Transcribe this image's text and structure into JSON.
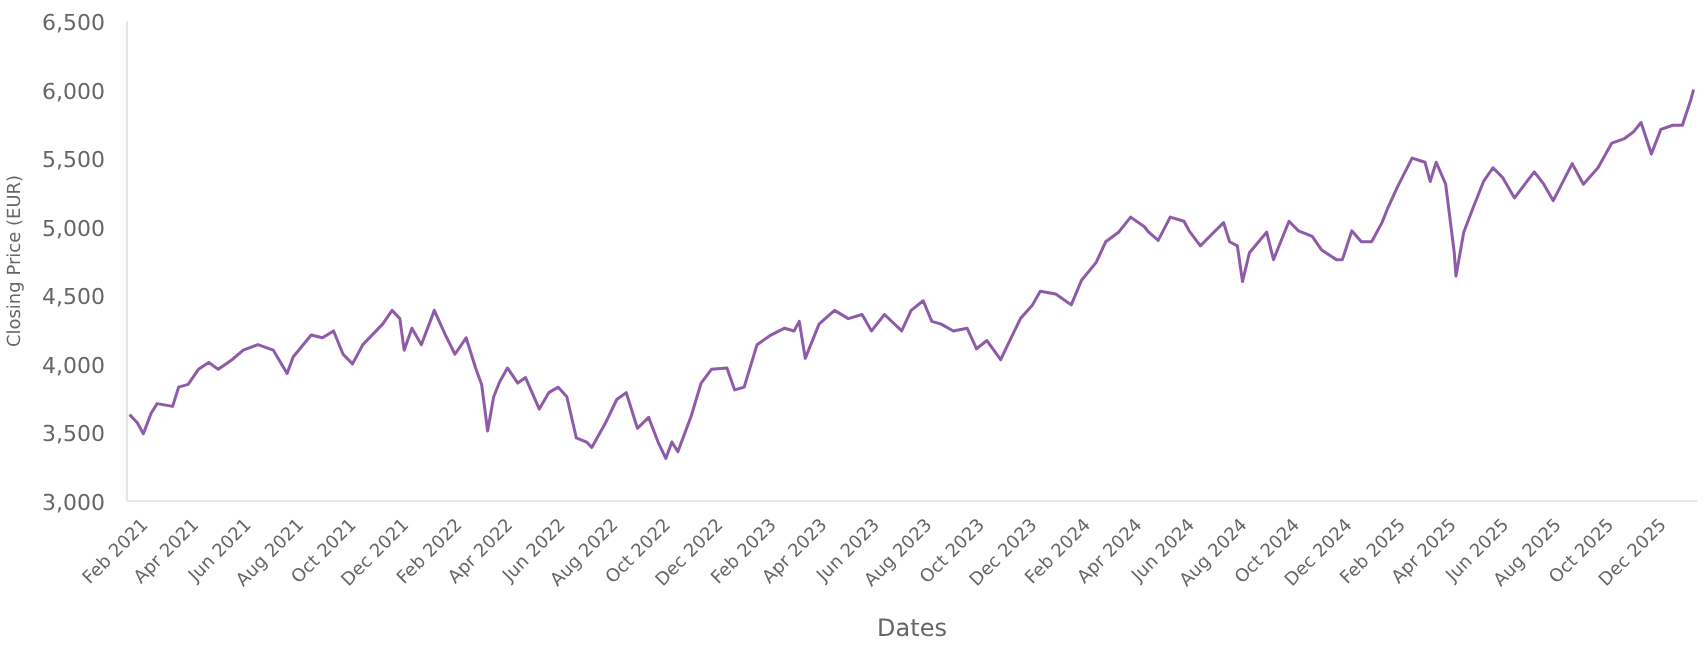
{
  "chart_data": {
    "type": "line",
    "xlabel": "Dates",
    "ylabel": "Closing Price (EUR)",
    "x": [
      "2021-01-13",
      "2021-01-22",
      "2021-01-29",
      "2021-02-07",
      "2021-02-14",
      "2021-03-04",
      "2021-03-11",
      "2021-03-22",
      "2021-04-03",
      "2021-04-15",
      "2021-04-26",
      "2021-05-12",
      "2021-05-25",
      "2021-06-11",
      "2021-06-29",
      "2021-07-15",
      "2021-07-22",
      "2021-08-12",
      "2021-08-25",
      "2021-09-07",
      "2021-09-18",
      "2021-09-29",
      "2021-10-11",
      "2021-11-03",
      "2021-11-14",
      "2021-11-23",
      "2021-11-28",
      "2021-12-07",
      "2021-12-18",
      "2022-01-02",
      "2022-01-15",
      "2022-01-26",
      "2022-02-08",
      "2022-02-19",
      "2022-02-26",
      "2022-03-05",
      "2022-03-12",
      "2022-03-19",
      "2022-03-28",
      "2022-04-09",
      "2022-04-18",
      "2022-05-04",
      "2022-05-15",
      "2022-05-26",
      "2022-06-05",
      "2022-06-16",
      "2022-06-28",
      "2022-07-04",
      "2022-07-20",
      "2022-08-02",
      "2022-08-13",
      "2022-08-26",
      "2022-09-08",
      "2022-09-19",
      "2022-09-28",
      "2022-10-05",
      "2022-10-12",
      "2022-10-27",
      "2022-11-08",
      "2022-11-20",
      "2022-12-08",
      "2022-12-17",
      "2022-12-28",
      "2023-01-12",
      "2023-01-28",
      "2023-02-13",
      "2023-02-24",
      "2023-03-02",
      "2023-03-09",
      "2023-03-25",
      "2023-04-12",
      "2023-04-28",
      "2023-05-14",
      "2023-05-25",
      "2023-06-09",
      "2023-06-29",
      "2023-07-10",
      "2023-07-24",
      "2023-08-03",
      "2023-08-14",
      "2023-08-28",
      "2023-09-13",
      "2023-09-24",
      "2023-10-06",
      "2023-10-22",
      "2023-10-28",
      "2023-11-14",
      "2023-11-28",
      "2023-12-07",
      "2023-12-25",
      "2024-01-12",
      "2024-01-24",
      "2024-02-10",
      "2024-02-21",
      "2024-03-07",
      "2024-03-21",
      "2024-04-06",
      "2024-04-11",
      "2024-04-22",
      "2024-05-06",
      "2024-05-22",
      "2024-05-28",
      "2024-06-10",
      "2024-06-21",
      "2024-07-07",
      "2024-07-14",
      "2024-07-23",
      "2024-07-29",
      "2024-08-06",
      "2024-08-26",
      "2024-09-03",
      "2024-09-21",
      "2024-10-02",
      "2024-10-18",
      "2024-10-29",
      "2024-11-15",
      "2024-11-22",
      "2024-12-03",
      "2024-12-14",
      "2024-12-26",
      "2025-01-07",
      "2025-01-14",
      "2025-01-25",
      "2025-02-11",
      "2025-02-26",
      "2025-03-04",
      "2025-03-11",
      "2025-03-22",
      "2025-04-01",
      "2025-04-03",
      "2025-04-12",
      "2025-04-23",
      "2025-05-05",
      "2025-05-16",
      "2025-05-27",
      "2025-06-10",
      "2025-06-22",
      "2025-07-03",
      "2025-07-14",
      "2025-07-25",
      "2025-08-16",
      "2025-08-29",
      "2025-09-15",
      "2025-10-01",
      "2025-10-15",
      "2025-10-26",
      "2025-11-04",
      "2025-11-16",
      "2025-11-27",
      "2025-12-11",
      "2025-12-22",
      "2026-01-01",
      "2026-01-04"
    ],
    "series": [
      {
        "color": "#8e5ba8",
        "values": [
          3630,
          3570,
          3490,
          3640,
          3710,
          3690,
          3830,
          3850,
          3960,
          4010,
          3960,
          4030,
          4100,
          4140,
          4100,
          3930,
          4050,
          4210,
          4190,
          4240,
          4070,
          4000,
          4140,
          4290,
          4390,
          4330,
          4100,
          4260,
          4140,
          4390,
          4210,
          4070,
          4190,
          3970,
          3850,
          3510,
          3760,
          3870,
          3970,
          3860,
          3900,
          3670,
          3790,
          3830,
          3760,
          3460,
          3430,
          3390,
          3570,
          3740,
          3790,
          3530,
          3610,
          3430,
          3310,
          3430,
          3360,
          3610,
          3860,
          3960,
          3970,
          3810,
          3830,
          4140,
          4210,
          4260,
          4240,
          4310,
          4040,
          4290,
          4390,
          4330,
          4360,
          4240,
          4360,
          4240,
          4390,
          4460,
          4310,
          4290,
          4240,
          4260,
          4110,
          4170,
          4030,
          4110,
          4330,
          4430,
          4530,
          4510,
          4430,
          4610,
          4740,
          4890,
          4960,
          5070,
          5000,
          4960,
          4900,
          5070,
          5040,
          4970,
          4860,
          4930,
          5030,
          4890,
          4860,
          4600,
          4810,
          4960,
          4760,
          5040,
          4970,
          4930,
          4830,
          4760,
          4760,
          4970,
          4890,
          4890,
          5030,
          5140,
          5290,
          5500,
          5470,
          5330,
          5470,
          5310,
          4810,
          4640,
          4960,
          5140,
          5330,
          5430,
          5360,
          5210,
          5310,
          5400,
          5310,
          5190,
          5460,
          5310,
          5430,
          5610,
          5640,
          5690,
          5760,
          5530,
          5710,
          5740,
          5740,
          5930,
          6000
        ]
      }
    ],
    "xlim": [
      "2021-01-10",
      "2026-01-08"
    ],
    "xticks": [
      {
        "value": "2021-02-01",
        "label": "Feb 2021"
      },
      {
        "value": "2021-04-01",
        "label": "Apr 2021"
      },
      {
        "value": "2021-06-01",
        "label": "Jun 2021"
      },
      {
        "value": "2021-08-01",
        "label": "Aug 2021"
      },
      {
        "value": "2021-10-01",
        "label": "Oct 2021"
      },
      {
        "value": "2021-12-01",
        "label": "Dec 2021"
      },
      {
        "value": "2022-02-01",
        "label": "Feb 2022"
      },
      {
        "value": "2022-04-01",
        "label": "Apr 2022"
      },
      {
        "value": "2022-06-01",
        "label": "Jun 2022"
      },
      {
        "value": "2022-08-01",
        "label": "Aug 2022"
      },
      {
        "value": "2022-10-01",
        "label": "Oct 2022"
      },
      {
        "value": "2022-12-01",
        "label": "Dec 2022"
      },
      {
        "value": "2023-02-01",
        "label": "Feb 2023"
      },
      {
        "value": "2023-04-01",
        "label": "Apr 2023"
      },
      {
        "value": "2023-06-01",
        "label": "Jun 2023"
      },
      {
        "value": "2023-08-01",
        "label": "Aug 2023"
      },
      {
        "value": "2023-10-01",
        "label": "Oct 2023"
      },
      {
        "value": "2023-12-01",
        "label": "Dec 2023"
      },
      {
        "value": "2024-02-01",
        "label": "Feb 2024"
      },
      {
        "value": "2024-04-01",
        "label": "Apr 2024"
      },
      {
        "value": "2024-06-01",
        "label": "Jun 2024"
      },
      {
        "value": "2024-08-01",
        "label": "Aug 2024"
      },
      {
        "value": "2024-10-01",
        "label": "Oct 2024"
      },
      {
        "value": "2024-12-01",
        "label": "Dec 2024"
      },
      {
        "value": "2025-02-01",
        "label": "Feb 2025"
      },
      {
        "value": "2025-04-01",
        "label": "Apr 2025"
      },
      {
        "value": "2025-06-01",
        "label": "Jun 2025"
      },
      {
        "value": "2025-08-01",
        "label": "Aug 2025"
      },
      {
        "value": "2025-10-01",
        "label": "Oct 2025"
      },
      {
        "value": "2025-12-01",
        "label": "Dec 2025"
      }
    ],
    "ylim": [
      3000,
      6500
    ],
    "yticks": [
      {
        "value": 3000,
        "label": "3,000"
      },
      {
        "value": 3500,
        "label": "3,500"
      },
      {
        "value": 4000,
        "label": "4,000"
      },
      {
        "value": 4500,
        "label": "4,500"
      },
      {
        "value": 5000,
        "label": "5,000"
      },
      {
        "value": 5500,
        "label": "5,500"
      },
      {
        "value": 6000,
        "label": "6,000"
      },
      {
        "value": 6500,
        "label": "6,500"
      }
    ],
    "line_style": "solid"
  }
}
